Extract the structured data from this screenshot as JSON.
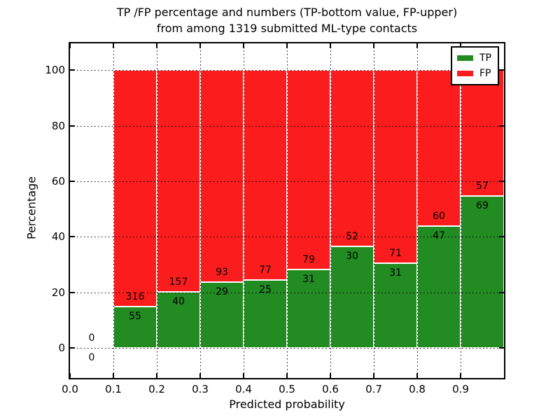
{
  "title": {
    "line1": "TP /FP percentage and numbers (TP-bottom value, FP-upper)",
    "line2": "from among 1319 submitted ML-type contacts"
  },
  "axes": {
    "x_label": "Predicted probability",
    "y_label": "Percentage"
  },
  "legend": {
    "position": "upper right",
    "items": [
      {
        "label": "TP",
        "color": "#228B22"
      },
      {
        "label": "FP",
        "color": "#FB1D1D"
      }
    ]
  },
  "chart_data": {
    "type": "bar",
    "stacked": true,
    "title": "TP /FP percentage and numbers (TP-bottom value, FP-upper) from among 1319 submitted ML-type contacts",
    "xlabel": "Predicted probability",
    "ylabel": "Percentage",
    "total_contacts": 1319,
    "bin_edges": [
      0.0,
      0.1,
      0.2,
      0.3,
      0.4,
      0.5,
      0.6,
      0.7,
      0.8,
      0.9,
      1.0
    ],
    "categories": [
      "0.0-0.1",
      "0.1-0.2",
      "0.2-0.3",
      "0.3-0.4",
      "0.4-0.5",
      "0.5-0.6",
      "0.6-0.7",
      "0.7-0.8",
      "0.8-0.9",
      "0.9-1.0"
    ],
    "series": [
      {
        "name": "TP",
        "color": "#228B22",
        "counts": [
          0,
          55,
          40,
          29,
          25,
          31,
          30,
          31,
          47,
          69
        ]
      },
      {
        "name": "FP",
        "color": "#FB1D1D",
        "counts": [
          0,
          316,
          157,
          93,
          77,
          79,
          52,
          71,
          60,
          57
        ]
      }
    ],
    "bar_unit": "percent of bin total (each non-empty bin stacks to 100%); labels show raw counts, TP bottom / FP upper",
    "x_ticks": [
      "0.0",
      "0.1",
      "0.2",
      "0.3",
      "0.4",
      "0.5",
      "0.6",
      "0.7",
      "0.8",
      "0.9"
    ],
    "y_ticks": [
      0,
      20,
      40,
      60,
      80,
      100
    ],
    "xlim": [
      0.0,
      1.0
    ],
    "ylim": [
      -10.8,
      109.6
    ],
    "grid": true,
    "gridline_style": "dotted black, drawn over bars",
    "bar_edge_color": "#ffffff",
    "legend_position": "upper right"
  }
}
